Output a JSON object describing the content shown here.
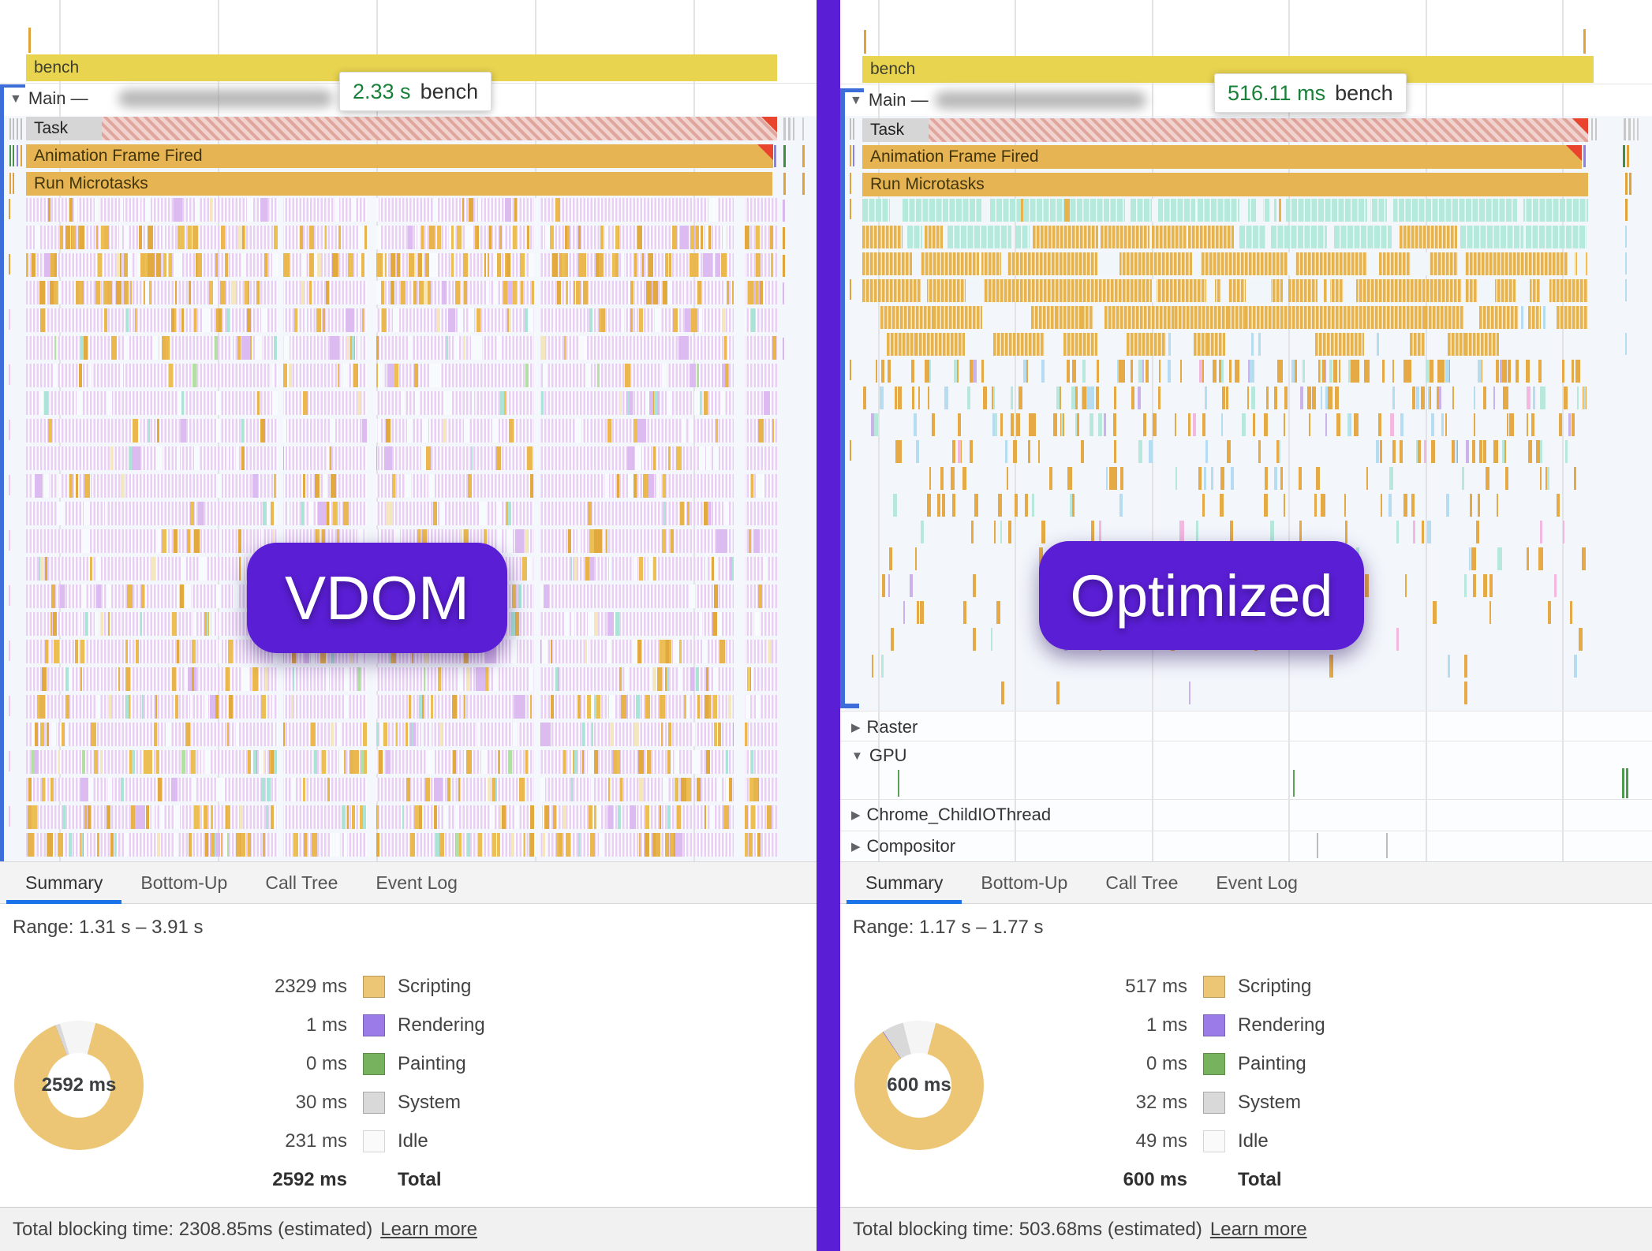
{
  "colors": {
    "accent_purple": "#5a1ed4",
    "selection_blue": "#3c6dd9",
    "tab_underline_blue": "#1a73e8",
    "scripting": "#ecc674",
    "rendering": "#9b7be8",
    "painting": "#77b35f",
    "system": "#d9d9d9",
    "idle": "#fafafa",
    "bench_yellow": "#e8d44f",
    "event_orange": "#e6b452",
    "lavender_stripe": "#e8cff3",
    "teal_stripe": "#b4e9dc",
    "long_task_red": "#e0a59c",
    "tooltip_value_green": "#188038"
  },
  "left": {
    "badge": "VDOM",
    "tooltip": {
      "value": "2.33 s",
      "label": "bench"
    },
    "bench_label": "bench",
    "main_arrow": "▼",
    "main_label": "Main —",
    "event_rows": {
      "task": "Task",
      "animation_frame": "Animation Frame Fired",
      "microtasks": "Run Microtasks"
    },
    "tabs": [
      {
        "label": "Summary"
      },
      {
        "label": "Bottom-Up"
      },
      {
        "label": "Call Tree"
      },
      {
        "label": "Event Log"
      }
    ],
    "range": "Range: 1.31 s – 3.91 s",
    "donut_total": "2592 ms",
    "legend": [
      {
        "value": "2329 ms",
        "label": "Scripting",
        "key": "scripting"
      },
      {
        "value": "1 ms",
        "label": "Rendering",
        "key": "rendering"
      },
      {
        "value": "0 ms",
        "label": "Painting",
        "key": "painting"
      },
      {
        "value": "30 ms",
        "label": "System",
        "key": "system"
      },
      {
        "value": "231 ms",
        "label": "Idle",
        "key": "idle"
      }
    ],
    "total": {
      "value": "2592 ms",
      "label": "Total"
    },
    "blocking": "Total blocking time: 2308.85ms (estimated)",
    "learn_more": "Learn more"
  },
  "right": {
    "badge": "Optimized",
    "tooltip": {
      "value": "516.11 ms",
      "label": "bench"
    },
    "bench_label": "bench",
    "main_arrow": "▼",
    "main_label": "Main —",
    "event_rows": {
      "task": "Task",
      "animation_frame": "Animation Frame Fired",
      "microtasks": "Run Microtasks"
    },
    "tracks": [
      {
        "arrow": "▶",
        "label": "Raster"
      },
      {
        "arrow": "▼",
        "label": "GPU"
      },
      {
        "arrow": "▶",
        "label": "Chrome_ChildIOThread"
      },
      {
        "arrow": "▶",
        "label": "Compositor"
      }
    ],
    "tabs": [
      {
        "label": "Summary"
      },
      {
        "label": "Bottom-Up"
      },
      {
        "label": "Call Tree"
      },
      {
        "label": "Event Log"
      }
    ],
    "range": "Range: 1.17 s – 1.77 s",
    "donut_total": "600 ms",
    "legend": [
      {
        "value": "517 ms",
        "label": "Scripting",
        "key": "scripting"
      },
      {
        "value": "1 ms",
        "label": "Rendering",
        "key": "rendering"
      },
      {
        "value": "0 ms",
        "label": "Painting",
        "key": "painting"
      },
      {
        "value": "32 ms",
        "label": "System",
        "key": "system"
      },
      {
        "value": "49 ms",
        "label": "Idle",
        "key": "idle"
      }
    ],
    "total": {
      "value": "600 ms",
      "label": "Total"
    },
    "blocking": "Total blocking time: 503.68ms (estimated)",
    "learn_more": "Learn more"
  },
  "chart_data": [
    {
      "type": "pie",
      "title": "VDOM trace summary (ms)",
      "categories": [
        "Scripting",
        "Rendering",
        "Painting",
        "System",
        "Idle"
      ],
      "values": [
        2329,
        1,
        0,
        30,
        231
      ],
      "total_label": "2592 ms",
      "legend_position": "right"
    },
    {
      "type": "pie",
      "title": "Optimized trace summary (ms)",
      "categories": [
        "Scripting",
        "Rendering",
        "Painting",
        "System",
        "Idle"
      ],
      "values": [
        517,
        1,
        0,
        32,
        49
      ],
      "total_label": "600 ms",
      "legend_position": "right"
    }
  ],
  "flame": {
    "left_rows": [
      {
        "o": 0.03,
        "t": 0,
        "g": 0
      },
      {
        "o": 0.26,
        "t": 0,
        "g": 0
      },
      {
        "o": 0.3,
        "t": 0,
        "g": 0
      },
      {
        "o": 0.26,
        "t": 0,
        "g": 0
      },
      {
        "o": 0.12,
        "t": 0.02,
        "g": 0
      },
      {
        "o": 0.05,
        "t": 0.02,
        "g": 0.01
      },
      {
        "o": 0.04,
        "t": 0,
        "g": 0.015
      },
      {
        "o": 0.03,
        "t": 0.03,
        "g": 0
      },
      {
        "o": 0.05,
        "t": 0.01,
        "g": 0
      },
      {
        "o": 0.04,
        "t": 0.01,
        "g": 0
      },
      {
        "o": 0.07,
        "t": 0,
        "g": 0
      },
      {
        "o": 0.05,
        "t": 0.015,
        "g": 0
      },
      {
        "o": 0.09,
        "t": 0,
        "g": 0
      },
      {
        "o": 0.05,
        "t": 0.02,
        "g": 0
      },
      {
        "o": 0.07,
        "t": 0.01,
        "g": 0
      },
      {
        "o": 0.06,
        "t": 0.02,
        "g": 0
      },
      {
        "o": 0.1,
        "t": 0.01,
        "g": 0
      },
      {
        "o": 0.07,
        "t": 0.02,
        "g": 0.01
      },
      {
        "o": 0.12,
        "t": 0.02,
        "g": 0
      },
      {
        "o": 0.1,
        "t": 0.02,
        "g": 0
      },
      {
        "o": 0.14,
        "t": 0.03,
        "g": 0.02
      },
      {
        "o": 0.12,
        "t": 0.02,
        "g": 0
      },
      {
        "o": 0.16,
        "t": 0.03,
        "g": 0
      },
      {
        "o": 0.2,
        "t": 0.03,
        "g": 0.01
      }
    ],
    "right_rows": [
      {
        "type": "teal"
      },
      {
        "type": "mix"
      },
      {
        "type": "orange",
        "gap": 0.06
      },
      {
        "type": "orange",
        "gap": 0.08
      },
      {
        "type": "blocks",
        "fill": 0.72
      },
      {
        "type": "blocks",
        "fill": 0.45
      },
      {
        "type": "sparse",
        "d": 0.3
      },
      {
        "type": "sparse",
        "d": 0.24
      },
      {
        "type": "sparse",
        "d": 0.19
      },
      {
        "type": "sparse",
        "d": 0.15
      },
      {
        "type": "sparse",
        "d": 0.12
      },
      {
        "type": "sparse",
        "d": 0.1
      },
      {
        "type": "sparse",
        "d": 0.08
      },
      {
        "type": "sparse",
        "d": 0.065
      },
      {
        "type": "sparse",
        "d": 0.05
      },
      {
        "type": "sparse",
        "d": 0.04
      },
      {
        "type": "sparse",
        "d": 0.03
      },
      {
        "type": "sparse",
        "d": 0.022
      },
      {
        "type": "sparse",
        "d": 0.015
      }
    ]
  }
}
